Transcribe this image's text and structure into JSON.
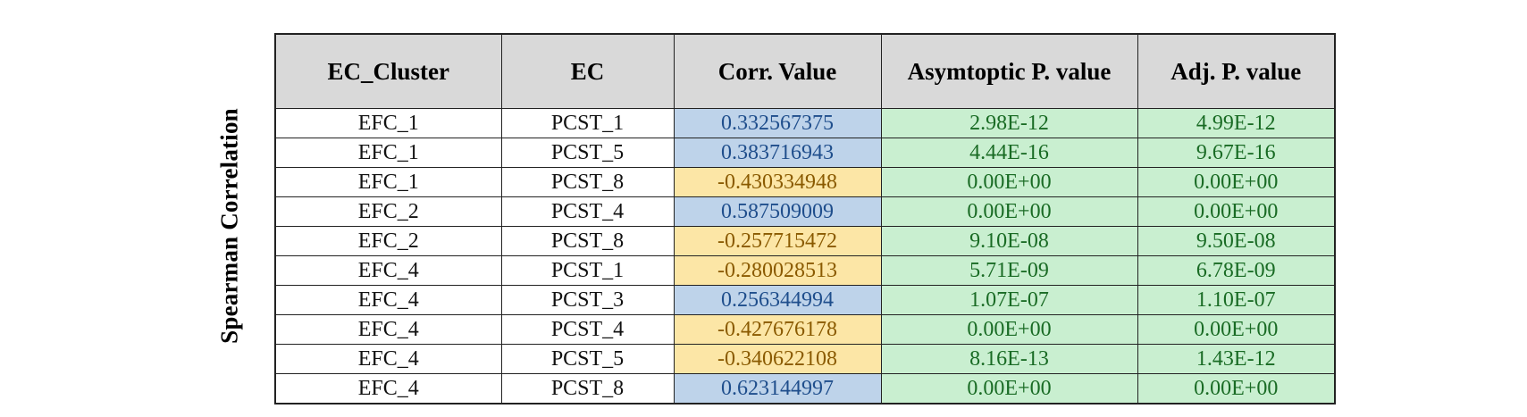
{
  "side_label": "Spearman Correlation",
  "columns": [
    "EC_Cluster",
    "EC",
    "Corr. Value",
    "Asymtoptic P. value",
    "Adj. P. value"
  ],
  "rows": [
    {
      "cluster": "EFC_1",
      "ec": "PCST_1",
      "corr": "0.332567375",
      "sign": "positive",
      "asym_p": "2.98E-12",
      "adj_p": "4.99E-12"
    },
    {
      "cluster": "EFC_1",
      "ec": "PCST_5",
      "corr": "0.383716943",
      "sign": "positive",
      "asym_p": "4.44E-16",
      "adj_p": "9.67E-16"
    },
    {
      "cluster": "EFC_1",
      "ec": "PCST_8",
      "corr": "-0.430334948",
      "sign": "negative",
      "asym_p": "0.00E+00",
      "adj_p": "0.00E+00"
    },
    {
      "cluster": "EFC_2",
      "ec": "PCST_4",
      "corr": "0.587509009",
      "sign": "positive",
      "asym_p": "0.00E+00",
      "adj_p": "0.00E+00"
    },
    {
      "cluster": "EFC_2",
      "ec": "PCST_8",
      "corr": "-0.257715472",
      "sign": "negative",
      "asym_p": "9.10E-08",
      "adj_p": "9.50E-08"
    },
    {
      "cluster": "EFC_4",
      "ec": "PCST_1",
      "corr": "-0.280028513",
      "sign": "negative",
      "asym_p": "5.71E-09",
      "adj_p": "6.78E-09"
    },
    {
      "cluster": "EFC_4",
      "ec": "PCST_3",
      "corr": "0.256344994",
      "sign": "positive",
      "asym_p": "1.07E-07",
      "adj_p": "1.10E-07"
    },
    {
      "cluster": "EFC_4",
      "ec": "PCST_4",
      "corr": "-0.427676178",
      "sign": "negative",
      "asym_p": "0.00E+00",
      "adj_p": "0.00E+00"
    },
    {
      "cluster": "EFC_4",
      "ec": "PCST_5",
      "corr": "-0.340622108",
      "sign": "negative",
      "asym_p": "8.16E-13",
      "adj_p": "1.43E-12"
    },
    {
      "cluster": "EFC_4",
      "ec": "PCST_8",
      "corr": "0.623144997",
      "sign": "positive",
      "asym_p": "0.00E+00",
      "adj_p": "0.00E+00"
    }
  ],
  "colors": {
    "header_bg": "#d9d9d9",
    "positive_bg": "#bed3ea",
    "positive_text": "#1f4e8c",
    "negative_bg": "#fce6a6",
    "negative_text": "#8a5a00",
    "pvalue_bg": "#c9efd0",
    "pvalue_text": "#196b24"
  }
}
